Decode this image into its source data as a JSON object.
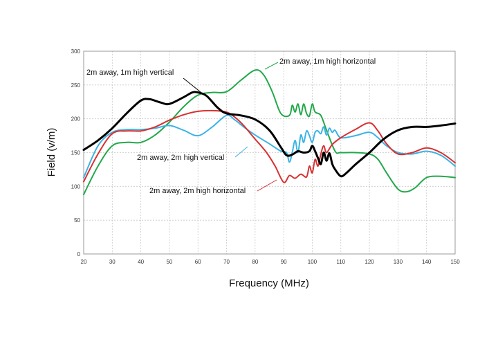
{
  "chart_data": {
    "type": "line",
    "title": "",
    "xlabel": "Frequency (MHz)",
    "ylabel": "Field (v/m)",
    "xlim": [
      20,
      150
    ],
    "ylim": [
      0,
      300
    ],
    "xticks": [
      20,
      30,
      40,
      50,
      60,
      70,
      80,
      90,
      100,
      110,
      120,
      130,
      140,
      150
    ],
    "yticks": [
      0,
      50,
      100,
      150,
      200,
      250,
      300
    ],
    "grid": true,
    "legend": "none",
    "series": [
      {
        "name": "2m away, 1m high vertical",
        "color": "#000000",
        "points": [
          [
            20,
            154
          ],
          [
            25,
            168
          ],
          [
            30,
            186
          ],
          [
            35,
            208
          ],
          [
            40,
            227
          ],
          [
            43,
            229
          ],
          [
            47,
            224
          ],
          [
            50,
            222
          ],
          [
            55,
            232
          ],
          [
            58,
            239
          ],
          [
            60,
            239
          ],
          [
            63,
            234
          ],
          [
            67,
            216
          ],
          [
            70,
            208
          ],
          [
            75,
            205
          ],
          [
            80,
            199
          ],
          [
            85,
            183
          ],
          [
            89,
            158
          ],
          [
            91,
            146
          ],
          [
            93,
            147
          ],
          [
            95,
            152
          ],
          [
            97,
            150
          ],
          [
            99,
            152
          ],
          [
            100,
            160
          ],
          [
            101,
            152
          ],
          [
            102,
            142
          ],
          [
            103,
            133
          ],
          [
            104,
            150
          ],
          [
            105,
            138
          ],
          [
            106,
            149
          ],
          [
            107,
            133
          ],
          [
            108,
            125
          ],
          [
            110,
            115
          ],
          [
            112,
            120
          ],
          [
            115,
            132
          ],
          [
            120,
            150
          ],
          [
            125,
            170
          ],
          [
            130,
            183
          ],
          [
            135,
            188
          ],
          [
            140,
            188
          ],
          [
            145,
            190
          ],
          [
            150,
            193
          ]
        ]
      },
      {
        "name": "2m away, 1m high horizontal",
        "color": "#22a84a",
        "points": [
          [
            20,
            88
          ],
          [
            25,
            130
          ],
          [
            30,
            160
          ],
          [
            35,
            165
          ],
          [
            40,
            165
          ],
          [
            45,
            176
          ],
          [
            50,
            195
          ],
          [
            55,
            218
          ],
          [
            60,
            235
          ],
          [
            65,
            239
          ],
          [
            70,
            240
          ],
          [
            75,
            257
          ],
          [
            80,
            272
          ],
          [
            83,
            265
          ],
          [
            86,
            240
          ],
          [
            89,
            208
          ],
          [
            92,
            205
          ],
          [
            93,
            220
          ],
          [
            94,
            210
          ],
          [
            95,
            222
          ],
          [
            96,
            206
          ],
          [
            97,
            222
          ],
          [
            98,
            208
          ],
          [
            99,
            204
          ],
          [
            100,
            222
          ],
          [
            101,
            210
          ],
          [
            103,
            205
          ],
          [
            105,
            183
          ],
          [
            108,
            152
          ],
          [
            110,
            150
          ],
          [
            115,
            150
          ],
          [
            120,
            148
          ],
          [
            123,
            140
          ],
          [
            126,
            120
          ],
          [
            130,
            96
          ],
          [
            133,
            92
          ],
          [
            136,
            98
          ],
          [
            140,
            113
          ],
          [
            145,
            115
          ],
          [
            150,
            113
          ]
        ]
      },
      {
        "name": "2m away, 2m high vertical",
        "color": "#3ab3e6",
        "points": [
          [
            20,
            113
          ],
          [
            25,
            160
          ],
          [
            30,
            180
          ],
          [
            35,
            184
          ],
          [
            40,
            184
          ],
          [
            45,
            186
          ],
          [
            50,
            190
          ],
          [
            55,
            183
          ],
          [
            60,
            175
          ],
          [
            65,
            188
          ],
          [
            70,
            205
          ],
          [
            73,
            198
          ],
          [
            76,
            188
          ],
          [
            80,
            176
          ],
          [
            85,
            163
          ],
          [
            89,
            152
          ],
          [
            91,
            150
          ],
          [
            92,
            136
          ],
          [
            93,
            150
          ],
          [
            94,
            168
          ],
          [
            95,
            150
          ],
          [
            96,
            176
          ],
          [
            97,
            165
          ],
          [
            98,
            182
          ],
          [
            99,
            175
          ],
          [
            100,
            165
          ],
          [
            101,
            180
          ],
          [
            102,
            182
          ],
          [
            103,
            178
          ],
          [
            104,
            188
          ],
          [
            105,
            176
          ],
          [
            106,
            186
          ],
          [
            107,
            180
          ],
          [
            108,
            183
          ],
          [
            110,
            172
          ],
          [
            115,
            175
          ],
          [
            120,
            180
          ],
          [
            123,
            172
          ],
          [
            126,
            160
          ],
          [
            130,
            150
          ],
          [
            135,
            148
          ],
          [
            140,
            152
          ],
          [
            145,
            146
          ],
          [
            150,
            130
          ]
        ]
      },
      {
        "name": "2m away, 2m high horizontal",
        "color": "#d93030",
        "points": [
          [
            20,
            107
          ],
          [
            25,
            148
          ],
          [
            30,
            178
          ],
          [
            35,
            182
          ],
          [
            40,
            182
          ],
          [
            45,
            188
          ],
          [
            50,
            198
          ],
          [
            55,
            206
          ],
          [
            60,
            211
          ],
          [
            65,
            212
          ],
          [
            70,
            210
          ],
          [
            73,
            202
          ],
          [
            76,
            190
          ],
          [
            80,
            170
          ],
          [
            84,
            150
          ],
          [
            87,
            130
          ],
          [
            90,
            106
          ],
          [
            92,
            116
          ],
          [
            94,
            112
          ],
          [
            96,
            118
          ],
          [
            98,
            114
          ],
          [
            99,
            130
          ],
          [
            100,
            120
          ],
          [
            101,
            140
          ],
          [
            102,
            130
          ],
          [
            103,
            148
          ],
          [
            104,
            160
          ],
          [
            105,
            150
          ],
          [
            107,
            162
          ],
          [
            110,
            172
          ],
          [
            115,
            184
          ],
          [
            120,
            194
          ],
          [
            123,
            182
          ],
          [
            126,
            163
          ],
          [
            130,
            148
          ],
          [
            135,
            150
          ],
          [
            140,
            157
          ],
          [
            145,
            150
          ],
          [
            150,
            135
          ]
        ]
      }
    ],
    "annotations": [
      {
        "text": "2m away, 1m high vertical",
        "series": 0
      },
      {
        "text": "2m away, 1m high horizontal",
        "series": 1
      },
      {
        "text": "2m away, 2m high vertical",
        "series": 2
      },
      {
        "text": "2m away, 2m high horizontal",
        "series": 3
      }
    ]
  }
}
